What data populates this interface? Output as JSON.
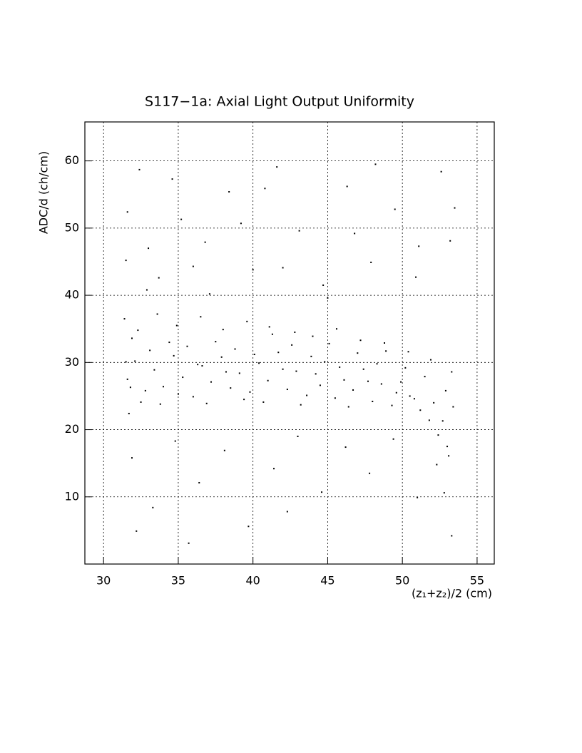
{
  "chart_data": {
    "type": "scatter",
    "title": "S117−1a: Axial Light Output Uniformity",
    "x_label": "(z₁+z₂)/2 (cm)",
    "y_label": "ADC/d (ch/cm)",
    "xlim": [
      28.75,
      56.15
    ],
    "ylim": [
      0,
      65.8
    ],
    "xticks": [
      30,
      35,
      40,
      45,
      50,
      55
    ],
    "yticks": [
      10,
      20,
      30,
      40,
      50,
      60
    ],
    "grid": true,
    "color": "#000000",
    "x": [
      31.6,
      32.1,
      32.8,
      33.4,
      34.0,
      34.7,
      35.3,
      36.0,
      36.6,
      37.2,
      37.9,
      38.5,
      39.1,
      39.8,
      40.4,
      41.0,
      41.7,
      42.3,
      42.9,
      43.6,
      44.2,
      44.8,
      45.5,
      46.1,
      46.7,
      47.4,
      48.0,
      48.6,
      49.3,
      49.9,
      50.5,
      51.2,
      51.8,
      52.4,
      53.0,
      53.4,
      31.9,
      32.5,
      33.1,
      33.8,
      34.4,
      35.0,
      35.6,
      36.3,
      36.9,
      37.5,
      38.2,
      38.8,
      39.4,
      40.1,
      40.7,
      41.3,
      42.0,
      42.6,
      43.2,
      43.9,
      44.5,
      45.1,
      45.8,
      46.4,
      47.0,
      47.7,
      48.3,
      48.9,
      49.6,
      50.2,
      50.8,
      51.5,
      52.1,
      52.7,
      31.4,
      31.7,
      32.3,
      33.6,
      34.9,
      36.5,
      38.0,
      39.6,
      41.1,
      42.8,
      44.0,
      45.6,
      47.2,
      48.8,
      50.4,
      51.9,
      52.9,
      53.3,
      31.5,
      31.8,
      31.5,
      32.4,
      33.7,
      35.2,
      36.8,
      38.4,
      40.0,
      41.6,
      43.1,
      44.7,
      46.3,
      47.9,
      49.5,
      51.1,
      52.6,
      53.5,
      31.6,
      32.9,
      34.6,
      37.1,
      39.2,
      42.0,
      45.0,
      48.2,
      50.9,
      53.2,
      33.0,
      36.0,
      40.8,
      46.8,
      31.9,
      33.3,
      34.8,
      36.4,
      38.1,
      39.7,
      41.4,
      43.0,
      44.6,
      46.2,
      47.8,
      49.4,
      51.0,
      52.3,
      52.8,
      53.1,
      53.3,
      32.2,
      35.7,
      42.3
    ],
    "y": [
      27.5,
      30.2,
      25.8,
      28.9,
      26.4,
      31.0,
      27.8,
      24.9,
      29.5,
      27.1,
      30.8,
      26.2,
      28.4,
      25.6,
      29.9,
      27.3,
      31.5,
      26.0,
      28.7,
      25.1,
      28.3,
      30.1,
      24.7,
      27.4,
      25.9,
      29.0,
      24.2,
      26.8,
      23.6,
      27.1,
      25.0,
      22.9,
      21.4,
      19.2,
      17.5,
      23.4,
      33.6,
      24.1,
      31.8,
      23.8,
      33.0,
      25.3,
      32.4,
      29.7,
      23.9,
      33.1,
      28.6,
      32.0,
      24.5,
      31.2,
      24.1,
      34.2,
      29.0,
      32.6,
      23.7,
      30.9,
      26.6,
      32.8,
      29.3,
      23.4,
      31.4,
      27.2,
      29.8,
      31.7,
      25.5,
      29.2,
      24.6,
      27.9,
      24.0,
      21.3,
      36.5,
      22.4,
      34.8,
      37.2,
      35.5,
      36.8,
      34.9,
      36.1,
      35.3,
      34.5,
      33.9,
      35.0,
      33.3,
      32.9,
      31.6,
      30.4,
      25.8,
      28.6,
      30.1,
      26.3,
      45.2,
      58.7,
      42.6,
      51.3,
      47.9,
      55.4,
      43.8,
      59.1,
      49.6,
      41.5,
      56.2,
      44.9,
      52.8,
      47.3,
      58.4,
      53.0,
      52.4,
      40.8,
      57.3,
      40.2,
      50.7,
      44.1,
      39.6,
      59.5,
      42.7,
      48.1,
      47.0,
      44.3,
      55.9,
      49.2,
      15.8,
      8.4,
      18.3,
      12.1,
      16.9,
      5.6,
      14.2,
      19.0,
      10.7,
      17.4,
      13.5,
      18.6,
      9.9,
      14.8,
      10.6,
      16.1,
      4.2,
      4.9,
      3.1,
      7.8
    ]
  }
}
